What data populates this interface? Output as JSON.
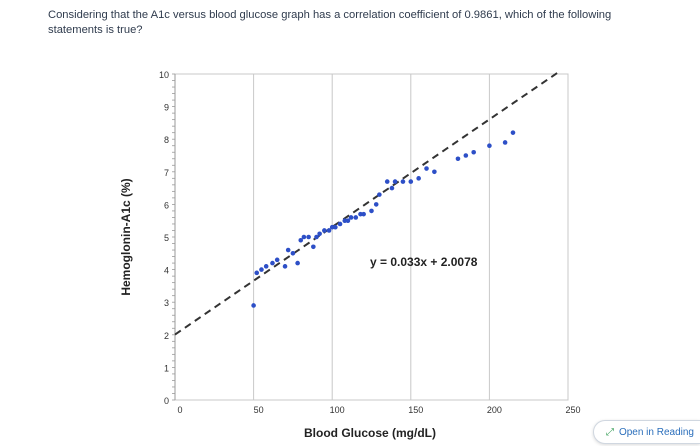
{
  "question": "Considering that the A1c versus blood glucose graph has a correlation coefficient of 0.9861, which of the following statements is true?",
  "open_reading": {
    "label": "Open in Reading",
    "icon": "expand-arrow-icon"
  },
  "colors": {
    "points": "#2d4fc7",
    "trendline": "#333333",
    "grid": "#c8c8c8"
  },
  "chart_data": {
    "type": "scatter",
    "xlabel": "Blood Glucose (mg/dL)",
    "ylabel": "Hemoglonin-A1c (%)",
    "xlim": [
      0,
      250
    ],
    "ylim": [
      0,
      10
    ],
    "x_ticks": [
      "0",
      "50",
      "100",
      "150",
      "200",
      "250"
    ],
    "y_ticks": [
      "0",
      "1",
      "2",
      "3",
      "4",
      "5",
      "6",
      "7",
      "8",
      "9",
      "10"
    ],
    "equation": "y = 0.033x + 2.0078",
    "trendline": {
      "slope": 0.033,
      "intercept": 2.0078,
      "x_range": [
        0,
        245
      ]
    },
    "grid": true,
    "series": [
      {
        "x": [
          50,
          52,
          55,
          58,
          62,
          65,
          70,
          72,
          75,
          78,
          80,
          82,
          85,
          88,
          90,
          92,
          95,
          98,
          100,
          102,
          105,
          108,
          110,
          112,
          115,
          118,
          120,
          125,
          128,
          130,
          135,
          138,
          140,
          145,
          150,
          155,
          160,
          165,
          180,
          185,
          190,
          200,
          210,
          215
        ],
        "y": [
          2.9,
          3.9,
          4.0,
          4.1,
          4.2,
          4.3,
          4.1,
          4.6,
          4.5,
          4.2,
          4.9,
          5.0,
          5.0,
          4.7,
          5.0,
          5.1,
          5.2,
          5.2,
          5.3,
          5.3,
          5.4,
          5.5,
          5.5,
          5.6,
          5.6,
          5.7,
          5.7,
          5.8,
          6.0,
          6.3,
          6.7,
          6.5,
          6.7,
          6.7,
          6.7,
          6.8,
          7.1,
          7.0,
          7.4,
          7.5,
          7.6,
          7.8,
          7.9,
          8.2
        ]
      }
    ]
  }
}
